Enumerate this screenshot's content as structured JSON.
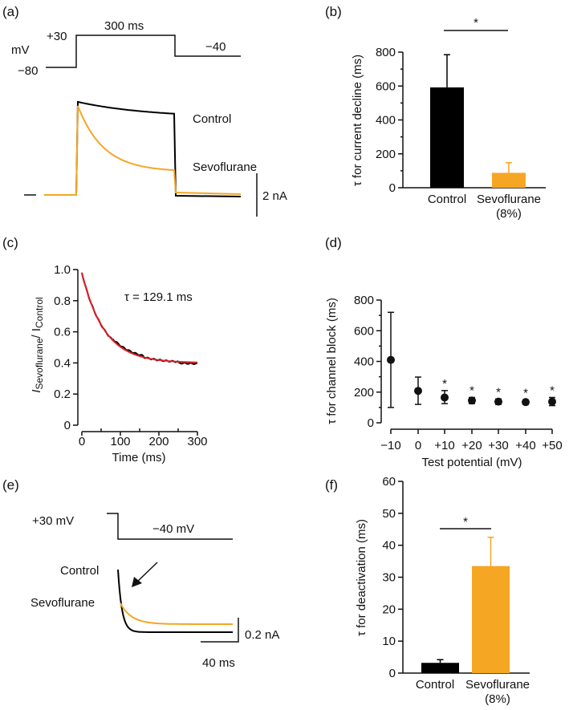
{
  "colors": {
    "control": "#000000",
    "sevoflurane": "#F5A623",
    "fit": "#E0202A",
    "axis": "#111111"
  },
  "chart_data": [
    {
      "panel": "(a)",
      "type": "line",
      "protocol": {
        "unit": "mV",
        "holding": "−80",
        "step": "+30",
        "duration": "300 ms",
        "return": "−40"
      },
      "series": [
        {
          "name": "Control"
        },
        {
          "name": "Sevoflurane"
        }
      ],
      "scale_bar": "2 nA"
    },
    {
      "panel": "(b)",
      "type": "bar",
      "categories": [
        "Control",
        "Sevoflurane"
      ],
      "category_sub": [
        "",
        "(8%)"
      ],
      "values": [
        592,
        88
      ],
      "errors": [
        193,
        60
      ],
      "ylabel": "τ for current decline (ms)",
      "ylim": [
        0,
        800
      ],
      "yticks": [
        "0",
        "200",
        "400",
        "600",
        "800"
      ],
      "significance": "*"
    },
    {
      "panel": "(c)",
      "type": "line",
      "ylabel_main": "I",
      "ylabel_sub1": "Sevoflurane",
      "ylabel_mid": "/ I",
      "ylabel_sub2": "Control",
      "xlabel": "Time (ms)",
      "xlim": [
        0,
        300
      ],
      "ylim": [
        0,
        1.0
      ],
      "xticks": [
        "0",
        "100",
        "200",
        "300"
      ],
      "yticks": [
        "0",
        "0.2",
        "0.4",
        "0.6",
        "0.8",
        "1.0"
      ],
      "fit": {
        "tau_ms": 129.1,
        "start": 0.98,
        "plateau": 0.4
      },
      "annotation": "τ = 129.1 ms"
    },
    {
      "panel": "(d)",
      "type": "scatter",
      "categories": [
        "−10",
        "0",
        "+10",
        "+20",
        "+30",
        "+40",
        "+50"
      ],
      "values": [
        410,
        208,
        165,
        145,
        138,
        135,
        138
      ],
      "err_low": [
        100,
        120,
        125,
        125,
        120,
        120,
        112
      ],
      "err_high": [
        720,
        298,
        210,
        165,
        155,
        148,
        165
      ],
      "significant": [
        false,
        false,
        true,
        true,
        true,
        true,
        true
      ],
      "significance": "*",
      "ylabel": "τ for channel block (ms)",
      "xlabel": "Test potential (mV)",
      "ylim": [
        0,
        800
      ],
      "yticks": [
        "0",
        "200",
        "400",
        "600",
        "800"
      ]
    },
    {
      "panel": "(e)",
      "type": "line",
      "protocol": {
        "step": "+30 mV",
        "return": "−40 mV"
      },
      "series": [
        {
          "name": "Control"
        },
        {
          "name": "Sevoflurane"
        }
      ],
      "scale_y": "0.2 nA",
      "scale_x": "40 ms"
    },
    {
      "panel": "(f)",
      "type": "bar",
      "categories": [
        "Control",
        "Sevoflurane"
      ],
      "category_sub": [
        "",
        "(8%)"
      ],
      "values": [
        3.2,
        33.5
      ],
      "errors": [
        1.0,
        9.0
      ],
      "ylabel": "τ for deactivation (ms)",
      "ylim": [
        0,
        60
      ],
      "yticks": [
        "0",
        "10",
        "20",
        "30",
        "40",
        "50",
        "60"
      ],
      "significance": "*"
    }
  ]
}
